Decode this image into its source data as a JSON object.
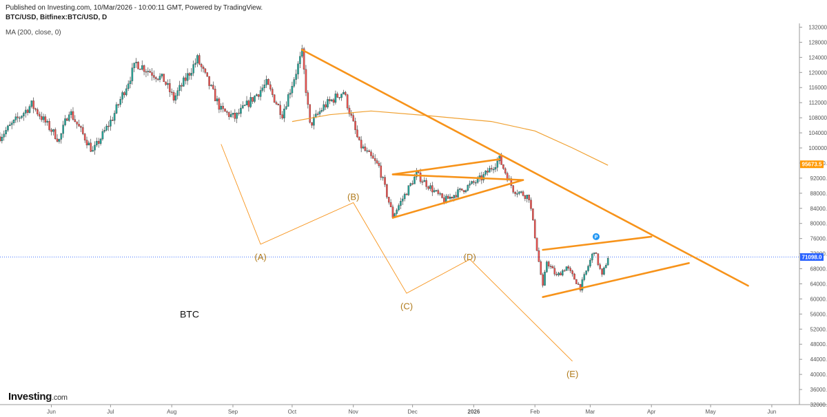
{
  "header": {
    "published": "Published on Investing.com, 10/Mar/2026 - 10:00:11 GMT, Powered by TradingView.",
    "symbol": "BTC/USD, Bitfinex:BTC/USD, D",
    "indicator": "MA (200, close, 0)"
  },
  "logo": {
    "main": "Investing",
    "suffix": ".com"
  },
  "chart_data": {
    "type": "candlestick",
    "title": "BTC/USD, Bitfinex:BTC/USD, D",
    "ylim": [
      32000,
      133000
    ],
    "yticks": [
      132000,
      128000,
      124000,
      120000,
      116000,
      112000,
      108000,
      104000,
      100000,
      96000,
      92000,
      88000,
      84000,
      80000,
      76000,
      72000,
      68000,
      64000,
      60000,
      56000,
      52000,
      48000,
      44000,
      40000,
      36000,
      32000
    ],
    "ytick_labels": [
      "132000.0",
      "128000.0",
      "124000.0",
      "120000.0",
      "116000.0",
      "112000.0",
      "108000.0",
      "104000.0",
      "100000.0",
      "96000.0",
      "92000.0",
      "88000.0",
      "84000.0",
      "80000.0",
      "76000.0",
      "72000.0",
      "68000.0",
      "64000.0",
      "60000.0",
      "56000.0",
      "52000.0",
      "48000.0",
      "44000.0",
      "40000.0",
      "36000.0",
      "32000.0"
    ],
    "xlim": [
      "2025-05-06",
      "2026-06-15"
    ],
    "xticks": [
      {
        "date": "2025-06-01",
        "label": "Jun",
        "bold": false
      },
      {
        "date": "2025-07-01",
        "label": "Jul",
        "bold": false
      },
      {
        "date": "2025-08-01",
        "label": "Aug",
        "bold": false
      },
      {
        "date": "2025-09-01",
        "label": "Sep",
        "bold": false
      },
      {
        "date": "2025-10-01",
        "label": "Oct",
        "bold": false
      },
      {
        "date": "2025-11-01",
        "label": "Nov",
        "bold": false
      },
      {
        "date": "2025-12-01",
        "label": "Dec",
        "bold": false
      },
      {
        "date": "2026-01-01",
        "label": "2026",
        "bold": true
      },
      {
        "date": "2026-02-01",
        "label": "Feb",
        "bold": false
      },
      {
        "date": "2026-03-01",
        "label": "Mar",
        "bold": false
      },
      {
        "date": "2026-04-01",
        "label": "Apr",
        "bold": false
      },
      {
        "date": "2026-05-01",
        "label": "May",
        "bold": false
      },
      {
        "date": "2026-06-01",
        "label": "Jun",
        "bold": false
      }
    ],
    "price_path": [
      [
        "2025-05-06",
        103000
      ],
      [
        "2025-05-22",
        111500
      ],
      [
        "2025-06-05",
        102000
      ],
      [
        "2025-06-10",
        110000
      ],
      [
        "2025-06-22",
        99000
      ],
      [
        "2025-07-02",
        108000
      ],
      [
        "2025-07-14",
        122500
      ],
      [
        "2025-07-28",
        118000
      ],
      [
        "2025-08-02",
        113000
      ],
      [
        "2025-08-14",
        123500
      ],
      [
        "2025-08-26",
        110000
      ],
      [
        "2025-09-02",
        108000
      ],
      [
        "2025-09-18",
        117000
      ],
      [
        "2025-09-26",
        109000
      ],
      [
        "2025-10-06",
        125000
      ],
      [
        "2025-10-10",
        106000
      ],
      [
        "2025-10-17",
        111000
      ],
      [
        "2025-10-27",
        115000
      ],
      [
        "2025-11-04",
        101000
      ],
      [
        "2025-11-14",
        95000
      ],
      [
        "2025-11-21",
        82000
      ],
      [
        "2025-12-03",
        93000
      ],
      [
        "2025-12-17",
        86000
      ],
      [
        "2026-01-05",
        92000
      ],
      [
        "2026-01-14",
        97000
      ],
      [
        "2026-01-21",
        89000
      ],
      [
        "2026-01-29",
        87000
      ],
      [
        "2026-02-05",
        63000
      ],
      [
        "2026-02-07",
        70000
      ],
      [
        "2026-02-12",
        66000
      ],
      [
        "2026-02-17",
        68500
      ],
      [
        "2026-02-24",
        63000
      ],
      [
        "2026-03-03",
        73000
      ],
      [
        "2026-03-07",
        66000
      ],
      [
        "2026-03-10",
        71098
      ]
    ],
    "ma200": {
      "name": "MA (200, close, 0)",
      "color": "#f0a030",
      "points": [
        [
          "2025-10-01",
          107000
        ],
        [
          "2025-10-20",
          108800
        ],
        [
          "2025-11-10",
          109800
        ],
        [
          "2025-12-10",
          108500
        ],
        [
          "2026-01-10",
          107000
        ],
        [
          "2026-02-01",
          104500
        ],
        [
          "2026-02-20",
          100000
        ],
        [
          "2026-03-10",
          95400
        ]
      ]
    },
    "last_price": {
      "value": 71098,
      "label": "71098.0",
      "color": "#2962ff"
    },
    "ma_value": {
      "value": 95673.5,
      "label": "95673.5",
      "color": "#ff9800"
    },
    "up_color": "#26a69a",
    "down_color": "#ef5350",
    "annotation_color": "#f7931a",
    "trendlines": [
      {
        "name": "main-downtrend",
        "from": [
          "2025-10-06",
          126000
        ],
        "to": [
          "2026-05-20",
          63500
        ]
      },
      {
        "name": "flag-upper",
        "from": [
          "2025-11-21",
          93000
        ],
        "to": [
          "2026-01-26",
          91500
        ]
      },
      {
        "name": "flag-upper-b",
        "from": [
          "2025-11-21",
          93000
        ],
        "to": [
          "2026-01-14",
          97000
        ]
      },
      {
        "name": "flag-lower",
        "from": [
          "2025-11-21",
          81500
        ],
        "to": [
          "2026-01-26",
          91500
        ]
      },
      {
        "name": "triangle-upper",
        "from": [
          "2026-02-05",
          73000
        ],
        "to": [
          "2026-04-01",
          76500
        ]
      },
      {
        "name": "triangle-lower",
        "from": [
          "2026-02-05",
          60500
        ],
        "to": [
          "2026-04-20",
          69500
        ]
      }
    ],
    "elliott_wave": {
      "points": [
        [
          "2025-08-26",
          101000
        ],
        [
          "2025-09-15",
          74500
        ],
        [
          "2025-11-01",
          85500
        ],
        [
          "2025-11-28",
          61500
        ],
        [
          "2025-12-30",
          70500
        ],
        [
          "2026-02-20",
          43500
        ]
      ],
      "labels": [
        {
          "text": "(A)",
          "date": "2025-09-15",
          "price": 71000
        },
        {
          "text": "(B)",
          "date": "2025-11-01",
          "price": 87000
        },
        {
          "text": "(C)",
          "date": "2025-11-28",
          "price": 58000
        },
        {
          "text": "(D)",
          "date": "2025-12-30",
          "price": 71000
        },
        {
          "text": "(E)",
          "date": "2026-02-20",
          "price": 40000
        }
      ]
    },
    "annotations": [
      {
        "text": "BTC",
        "date": "2025-08-10",
        "price": 56000
      }
    ]
  }
}
